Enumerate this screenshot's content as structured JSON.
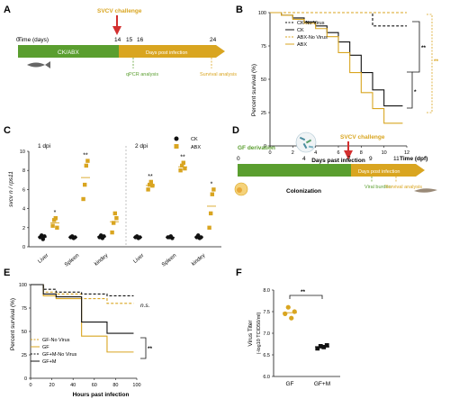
{
  "panelA": {
    "letter": "A",
    "challenge": "SVCV challenge",
    "time_label": "Time (days)",
    "ticks": [
      "0",
      "14",
      "15",
      "16",
      "24"
    ],
    "phase1": "CK/ABX",
    "phase2": "Days post infection",
    "note1": "qPCR analysis",
    "note2": "Survival analysis",
    "colors": {
      "green": "#5a9e2f",
      "gold": "#d9a520",
      "arrow": "#d32f2f"
    }
  },
  "panelB": {
    "letter": "B",
    "ylabel": "Percent survival (%)",
    "xlabel": "Days past infection",
    "sig_upper": "**",
    "sig_lower": "*",
    "sig_gold": "**",
    "chart_data": {
      "type": "line",
      "xlim": [
        0,
        12
      ],
      "ylim": [
        0,
        100
      ],
      "xticks": [
        "0",
        "2",
        "4",
        "6",
        "8",
        "10",
        "12"
      ],
      "yticks": [
        "0",
        "25",
        "50",
        "75",
        "100"
      ],
      "series": [
        {
          "name": "CK-No Virus",
          "color": "#111111",
          "style": "dashed",
          "x": [
            0,
            9,
            9,
            12
          ],
          "y": [
            100,
            100,
            90,
            90
          ]
        },
        {
          "name": "CK",
          "color": "#111111",
          "style": "solid",
          "x": [
            0,
            1,
            2,
            3,
            4,
            5,
            6,
            7,
            8,
            9,
            10,
            11
          ],
          "y": [
            100,
            98,
            96,
            93,
            90,
            85,
            78,
            68,
            55,
            42,
            30,
            30
          ]
        },
        {
          "name": "ABX-No Virus",
          "color": "#d9a520",
          "style": "dashed",
          "x": [
            0,
            12
          ],
          "y": [
            100,
            100
          ]
        },
        {
          "name": "ABX",
          "color": "#d9a520",
          "style": "solid",
          "x": [
            0,
            1,
            2,
            3,
            4,
            5,
            6,
            7,
            8,
            9,
            10,
            11
          ],
          "y": [
            100,
            98,
            95,
            92,
            88,
            82,
            70,
            55,
            40,
            28,
            17,
            17
          ]
        }
      ]
    }
  },
  "panelC": {
    "letter": "C",
    "ylabel": "svcv n / rps11",
    "day1": "1 dpi",
    "day2": "2 dpi",
    "legend": [
      "CK",
      "ABX"
    ],
    "chart_data": {
      "type": "scatter",
      "ylim": [
        0,
        10
      ],
      "yticks": [
        "0",
        "2",
        "4",
        "6",
        "8",
        "10"
      ],
      "categories": [
        "Liver",
        "Spleen",
        "kindey",
        "Liver",
        "Spleen",
        "kindey"
      ],
      "significance": [
        "*",
        "**",
        "",
        "**",
        "**",
        "*"
      ],
      "series": [
        {
          "name": "CK",
          "color": "#111111",
          "values": [
            [
              1.0,
              1.2,
              0.8,
              1.1
            ],
            [
              1.0,
              1.1,
              0.9,
              1.0
            ],
            [
              1.0,
              1.2,
              0.9,
              1.1
            ],
            [
              1.0,
              1.1,
              0.9,
              1.0
            ],
            [
              1.0,
              1.0,
              1.1,
              0.9
            ],
            [
              1.0,
              1.2,
              0.9,
              1.0
            ]
          ]
        },
        {
          "name": "ABX",
          "color": "#d9a520",
          "values": [
            [
              2.2,
              2.8,
              3.0,
              2.0
            ],
            [
              5.0,
              6.5,
              8.5,
              9.0
            ],
            [
              1.5,
              2.5,
              3.5,
              3.0
            ],
            [
              6.0,
              6.5,
              6.8,
              6.4
            ],
            [
              8.0,
              8.5,
              8.8,
              8.2
            ],
            [
              2.0,
              3.5,
              5.5,
              6.0
            ]
          ]
        }
      ]
    }
  },
  "panelD": {
    "letter": "D",
    "derivation": "GF derivation",
    "challenge": "SVCV challenge",
    "time_label": "Time (dpf)",
    "ticks": [
      "0",
      "4",
      "7",
      "9",
      "11"
    ],
    "colonization": "Colonization",
    "phase2": "Days post infection",
    "note1": "Viral burden",
    "note2": "Survival analysis"
  },
  "panelE": {
    "letter": "E",
    "ylabel": "Percent survival (%)",
    "xlabel": "Hours past infection",
    "ns": "n.s.",
    "sig": "**",
    "chart_data": {
      "type": "line",
      "xlim": [
        0,
        100
      ],
      "ylim": [
        0,
        100
      ],
      "xticks": [
        "0",
        "20",
        "40",
        "60",
        "80",
        "100"
      ],
      "yticks": [
        "0",
        "25",
        "50",
        "75",
        "100"
      ],
      "series": [
        {
          "name": "GF-No Virus",
          "color": "#d9a520",
          "style": "dashed",
          "x": [
            0,
            12,
            24,
            48,
            72,
            96
          ],
          "y": [
            100,
            92,
            90,
            85,
            80,
            80
          ]
        },
        {
          "name": "GF",
          "color": "#d9a520",
          "style": "solid",
          "x": [
            0,
            12,
            24,
            48,
            72,
            96
          ],
          "y": [
            100,
            88,
            85,
            45,
            28,
            28
          ]
        },
        {
          "name": "GF+M-No Virus",
          "color": "#111111",
          "style": "dashed",
          "x": [
            0,
            12,
            24,
            48,
            72,
            96
          ],
          "y": [
            100,
            95,
            92,
            90,
            88,
            88
          ]
        },
        {
          "name": "GF+M",
          "color": "#111111",
          "style": "solid",
          "x": [
            0,
            12,
            24,
            48,
            72,
            96
          ],
          "y": [
            100,
            90,
            87,
            60,
            48,
            48
          ]
        }
      ]
    }
  },
  "panelF": {
    "letter": "F",
    "ylabel": "Virus Titer",
    "ylabel2": "(-log10 TCID50/ml)",
    "sig": "**",
    "chart_data": {
      "type": "scatter",
      "ylim": [
        6.0,
        8.0
      ],
      "yticks": [
        "6.0",
        "6.5",
        "7.0",
        "7.5",
        "8.0"
      ],
      "categories": [
        "GF",
        "GF+M"
      ],
      "series": [
        {
          "name": "GF",
          "color": "#d9a520",
          "values": [
            7.45,
            7.6,
            7.35,
            7.5
          ]
        },
        {
          "name": "GF+M",
          "color": "#111111",
          "values": [
            6.65,
            6.7,
            6.68,
            6.72
          ]
        }
      ]
    }
  }
}
